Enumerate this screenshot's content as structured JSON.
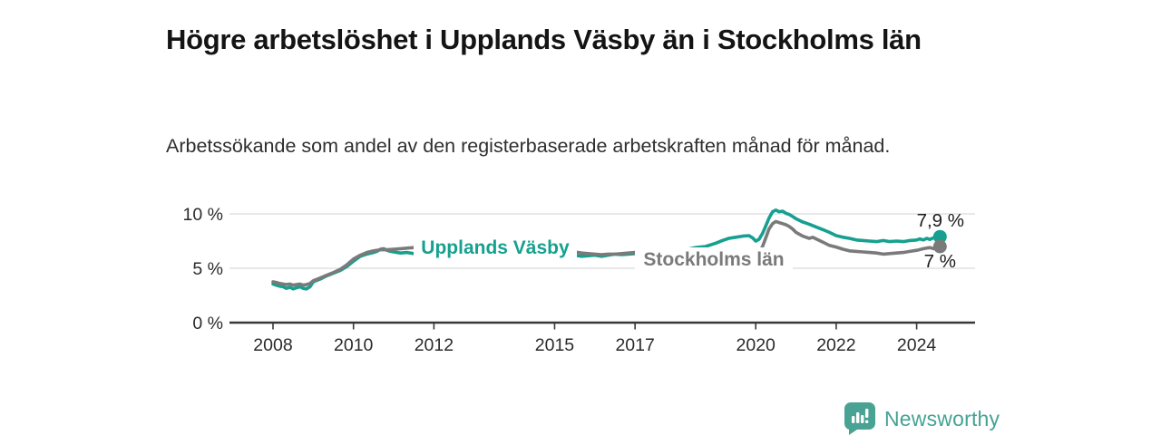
{
  "title": "Högre arbetslöshet i Upplands Väsby än i Stockholms län",
  "subtitle": "Arbetssökande som andel av den registerbaserade arbetskraften månad för månad.",
  "footer": {
    "brand": "Newsworthy",
    "logo_icon": "bar-chart-speech-bubble-icon"
  },
  "colors": {
    "accent_teal": "#16A08F",
    "neutral_gray": "#7A7A7A",
    "grid": "#D9D9D9",
    "axis": "#383838",
    "tick_text": "#2B2B2B",
    "value_text": "#1B1B1B",
    "brand_teal": "#4AA294"
  },
  "chart_data": {
    "type": "line",
    "title": "Högre arbetslöshet i Upplands Väsby än i Stockholms län",
    "subtitle": "Arbetssökande som andel av den registerbaserade arbetskraften månad för månad.",
    "xlabel": "",
    "ylabel": "",
    "xlim": [
      2006.9,
      2025.45
    ],
    "ylim": [
      0,
      11.3
    ],
    "grid": "horizontal",
    "legend_position": "inline-labels",
    "y_ticks": [
      {
        "value": 0,
        "label": "0 %"
      },
      {
        "value": 5,
        "label": "5 %"
      },
      {
        "value": 10,
        "label": "10 %"
      }
    ],
    "x_ticks": [
      {
        "value": 2008,
        "label": "2008"
      },
      {
        "value": 2010,
        "label": "2010"
      },
      {
        "value": 2012,
        "label": "2012"
      },
      {
        "value": 2015,
        "label": "2015"
      },
      {
        "value": 2017,
        "label": "2017"
      },
      {
        "value": 2020,
        "label": "2020"
      },
      {
        "value": 2022,
        "label": "2022"
      },
      {
        "value": 2024,
        "label": "2024"
      }
    ],
    "series": [
      {
        "name": "Upplands Väsby",
        "color": "#16A08F",
        "end_label": "7,9 %",
        "end_value": 7.9,
        "points": [
          [
            2008.0,
            3.55
          ],
          [
            2008.08,
            3.45
          ],
          [
            2008.17,
            3.35
          ],
          [
            2008.25,
            3.3
          ],
          [
            2008.33,
            3.15
          ],
          [
            2008.42,
            3.25
          ],
          [
            2008.5,
            3.1
          ],
          [
            2008.58,
            3.2
          ],
          [
            2008.67,
            3.3
          ],
          [
            2008.75,
            3.15
          ],
          [
            2008.83,
            3.1
          ],
          [
            2008.92,
            3.3
          ],
          [
            2009.0,
            3.75
          ],
          [
            2009.17,
            4.0
          ],
          [
            2009.33,
            4.3
          ],
          [
            2009.5,
            4.55
          ],
          [
            2009.67,
            4.8
          ],
          [
            2009.83,
            5.15
          ],
          [
            2010.0,
            5.65
          ],
          [
            2010.17,
            6.1
          ],
          [
            2010.33,
            6.3
          ],
          [
            2010.5,
            6.45
          ],
          [
            2010.58,
            6.55
          ],
          [
            2010.67,
            6.75
          ],
          [
            2010.75,
            6.8
          ],
          [
            2010.83,
            6.65
          ],
          [
            2010.92,
            6.55
          ],
          [
            2011.0,
            6.5
          ],
          [
            2011.17,
            6.4
          ],
          [
            2011.33,
            6.45
          ],
          [
            2011.5,
            6.35
          ],
          [
            2011.67,
            6.25
          ],
          [
            2011.83,
            6.2
          ],
          [
            2012.0,
            6.1
          ],
          [
            2012.25,
            6.3
          ],
          [
            2012.5,
            6.45
          ],
          [
            2012.75,
            6.55
          ],
          [
            2013.0,
            6.65
          ],
          [
            2013.25,
            6.75
          ],
          [
            2013.5,
            6.7
          ],
          [
            2013.75,
            6.65
          ],
          [
            2014.0,
            6.6
          ],
          [
            2014.25,
            6.5
          ],
          [
            2014.5,
            6.45
          ],
          [
            2014.75,
            6.35
          ],
          [
            2015.0,
            6.25
          ],
          [
            2015.25,
            6.2
          ],
          [
            2015.5,
            6.2
          ],
          [
            2015.67,
            6.1
          ],
          [
            2015.83,
            6.15
          ],
          [
            2016.0,
            6.2
          ],
          [
            2016.17,
            6.1
          ],
          [
            2016.33,
            6.2
          ],
          [
            2016.5,
            6.3
          ],
          [
            2016.67,
            6.25
          ],
          [
            2016.83,
            6.3
          ],
          [
            2017.0,
            6.35
          ],
          [
            2017.25,
            6.4
          ],
          [
            2017.5,
            6.45
          ],
          [
            2017.75,
            6.55
          ],
          [
            2018.0,
            6.6
          ],
          [
            2018.25,
            6.7
          ],
          [
            2018.5,
            6.9
          ],
          [
            2018.75,
            7.0
          ],
          [
            2019.0,
            7.3
          ],
          [
            2019.17,
            7.55
          ],
          [
            2019.33,
            7.75
          ],
          [
            2019.5,
            7.85
          ],
          [
            2019.67,
            7.95
          ],
          [
            2019.83,
            8.0
          ],
          [
            2019.92,
            7.8
          ],
          [
            2020.0,
            7.5
          ],
          [
            2020.08,
            7.65
          ],
          [
            2020.17,
            8.2
          ],
          [
            2020.25,
            8.9
          ],
          [
            2020.33,
            9.6
          ],
          [
            2020.42,
            10.2
          ],
          [
            2020.5,
            10.35
          ],
          [
            2020.58,
            10.2
          ],
          [
            2020.67,
            10.25
          ],
          [
            2020.75,
            10.05
          ],
          [
            2020.83,
            9.95
          ],
          [
            2020.92,
            9.75
          ],
          [
            2021.0,
            9.55
          ],
          [
            2021.17,
            9.25
          ],
          [
            2021.33,
            9.05
          ],
          [
            2021.5,
            8.8
          ],
          [
            2021.67,
            8.55
          ],
          [
            2021.83,
            8.3
          ],
          [
            2022.0,
            8.0
          ],
          [
            2022.17,
            7.85
          ],
          [
            2022.33,
            7.75
          ],
          [
            2022.5,
            7.6
          ],
          [
            2022.67,
            7.55
          ],
          [
            2022.83,
            7.5
          ],
          [
            2023.0,
            7.45
          ],
          [
            2023.17,
            7.55
          ],
          [
            2023.33,
            7.45
          ],
          [
            2023.5,
            7.5
          ],
          [
            2023.67,
            7.45
          ],
          [
            2023.83,
            7.55
          ],
          [
            2024.0,
            7.6
          ],
          [
            2024.08,
            7.7
          ],
          [
            2024.17,
            7.6
          ],
          [
            2024.25,
            7.75
          ],
          [
            2024.33,
            7.65
          ],
          [
            2024.42,
            7.8
          ],
          [
            2024.5,
            7.75
          ],
          [
            2024.58,
            7.9
          ]
        ]
      },
      {
        "name": "Stockholms län",
        "color": "#7A7A7A",
        "end_label": "7 %",
        "end_value": 7.0,
        "points": [
          [
            2008.0,
            3.75
          ],
          [
            2008.08,
            3.7
          ],
          [
            2008.17,
            3.6
          ],
          [
            2008.25,
            3.55
          ],
          [
            2008.33,
            3.5
          ],
          [
            2008.42,
            3.55
          ],
          [
            2008.5,
            3.45
          ],
          [
            2008.58,
            3.5
          ],
          [
            2008.67,
            3.55
          ],
          [
            2008.75,
            3.45
          ],
          [
            2008.83,
            3.5
          ],
          [
            2008.92,
            3.6
          ],
          [
            2009.0,
            3.85
          ],
          [
            2009.17,
            4.1
          ],
          [
            2009.33,
            4.35
          ],
          [
            2009.5,
            4.6
          ],
          [
            2009.67,
            4.9
          ],
          [
            2009.83,
            5.3
          ],
          [
            2010.0,
            5.85
          ],
          [
            2010.17,
            6.2
          ],
          [
            2010.33,
            6.45
          ],
          [
            2010.5,
            6.6
          ],
          [
            2010.67,
            6.7
          ],
          [
            2010.83,
            6.7
          ],
          [
            2011.0,
            6.75
          ],
          [
            2011.17,
            6.8
          ],
          [
            2011.33,
            6.85
          ],
          [
            2011.5,
            6.9
          ],
          [
            2011.67,
            6.75
          ],
          [
            2011.83,
            6.55
          ],
          [
            2012.0,
            6.4
          ],
          [
            2012.25,
            6.45
          ],
          [
            2012.5,
            6.55
          ],
          [
            2012.75,
            6.6
          ],
          [
            2013.0,
            6.65
          ],
          [
            2013.25,
            6.65
          ],
          [
            2013.5,
            6.6
          ],
          [
            2013.75,
            6.55
          ],
          [
            2014.0,
            6.5
          ],
          [
            2014.25,
            6.45
          ],
          [
            2014.5,
            6.4
          ],
          [
            2014.75,
            6.4
          ],
          [
            2015.0,
            6.4
          ],
          [
            2015.25,
            6.45
          ],
          [
            2015.5,
            6.5
          ],
          [
            2015.67,
            6.4
          ],
          [
            2015.83,
            6.35
          ],
          [
            2016.0,
            6.3
          ],
          [
            2016.17,
            6.25
          ],
          [
            2016.33,
            6.3
          ],
          [
            2016.5,
            6.3
          ],
          [
            2016.67,
            6.35
          ],
          [
            2016.83,
            6.4
          ],
          [
            2017.0,
            6.45
          ],
          [
            2017.25,
            6.35
          ],
          [
            2017.5,
            6.3
          ],
          [
            2017.75,
            6.25
          ],
          [
            2018.0,
            6.2
          ],
          [
            2018.25,
            6.2
          ],
          [
            2018.5,
            6.25
          ],
          [
            2018.75,
            6.3
          ],
          [
            2019.0,
            6.3
          ],
          [
            2019.25,
            6.35
          ],
          [
            2019.5,
            6.4
          ],
          [
            2019.75,
            6.45
          ],
          [
            2019.92,
            6.3
          ],
          [
            2020.0,
            6.2
          ],
          [
            2020.08,
            6.35
          ],
          [
            2020.17,
            7.0
          ],
          [
            2020.25,
            7.8
          ],
          [
            2020.33,
            8.6
          ],
          [
            2020.42,
            9.1
          ],
          [
            2020.5,
            9.3
          ],
          [
            2020.58,
            9.2
          ],
          [
            2020.67,
            9.1
          ],
          [
            2020.75,
            9.0
          ],
          [
            2020.83,
            8.85
          ],
          [
            2020.92,
            8.6
          ],
          [
            2021.0,
            8.3
          ],
          [
            2021.17,
            7.95
          ],
          [
            2021.33,
            7.75
          ],
          [
            2021.42,
            7.85
          ],
          [
            2021.5,
            7.7
          ],
          [
            2021.67,
            7.4
          ],
          [
            2021.83,
            7.1
          ],
          [
            2022.0,
            6.95
          ],
          [
            2022.17,
            6.75
          ],
          [
            2022.33,
            6.6
          ],
          [
            2022.5,
            6.55
          ],
          [
            2022.67,
            6.5
          ],
          [
            2022.83,
            6.45
          ],
          [
            2023.0,
            6.4
          ],
          [
            2023.17,
            6.3
          ],
          [
            2023.33,
            6.35
          ],
          [
            2023.5,
            6.4
          ],
          [
            2023.67,
            6.45
          ],
          [
            2023.83,
            6.55
          ],
          [
            2024.0,
            6.65
          ],
          [
            2024.17,
            6.8
          ],
          [
            2024.33,
            6.9
          ],
          [
            2024.42,
            6.8
          ],
          [
            2024.5,
            6.9
          ],
          [
            2024.58,
            7.0
          ]
        ]
      }
    ]
  }
}
